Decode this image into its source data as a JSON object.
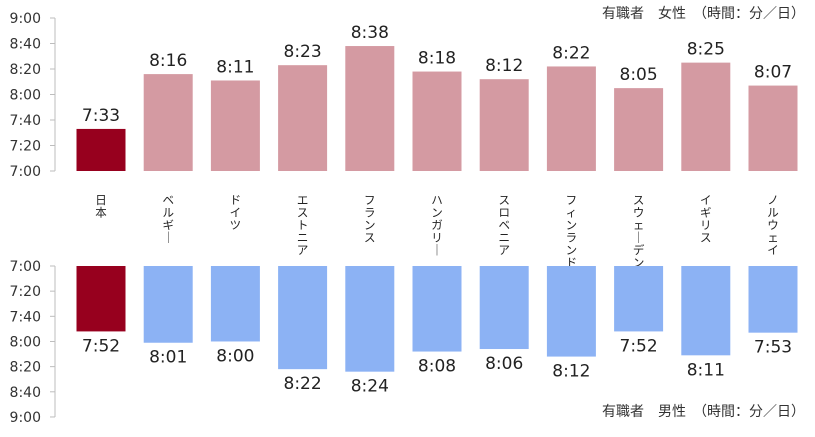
{
  "chart_data": [
    {
      "type": "bar",
      "title": "有職者　女性　（時間：分／日）",
      "categories": [
        "日本",
        "ベルギー",
        "ドイツ",
        "エストニア",
        "フランス",
        "ハンガリー",
        "スロベニア",
        "フィンランド",
        "スウェーデン",
        "イギリス",
        "ノルウェイ"
      ],
      "values": [
        "7:33",
        "8:16",
        "8:11",
        "8:23",
        "8:38",
        "8:18",
        "8:12",
        "8:22",
        "8:05",
        "8:25",
        "8:07"
      ],
      "ylim": [
        "7:00",
        "9:00"
      ],
      "yticks": [
        "9:00",
        "8:40",
        "8:20",
        "8:00",
        "7:40",
        "7:20",
        "7:00"
      ],
      "direction": "up",
      "highlight_color": "#97001e",
      "bar_color": "#d49aa2",
      "highlight_category": "日本"
    },
    {
      "type": "bar",
      "title": "有職者　男性　（時間：分／日）",
      "categories": [
        "日本",
        "ベルギー",
        "ドイツ",
        "エストニア",
        "フランス",
        "ハンガリー",
        "スロベニア",
        "フィンランド",
        "スウェーデン",
        "イギリス",
        "ノルウェイ"
      ],
      "values": [
        "7:52",
        "8:01",
        "8:00",
        "8:22",
        "8:24",
        "8:08",
        "8:06",
        "8:12",
        "7:52",
        "8:11",
        "7:53"
      ],
      "ylim": [
        "7:00",
        "9:00"
      ],
      "yticks": [
        "7:00",
        "7:20",
        "7:40",
        "8:00",
        "8:20",
        "8:40",
        "9:00"
      ],
      "direction": "down",
      "highlight_color": "#97001e",
      "bar_color": "#8cb2f4",
      "highlight_category": "日本"
    }
  ]
}
